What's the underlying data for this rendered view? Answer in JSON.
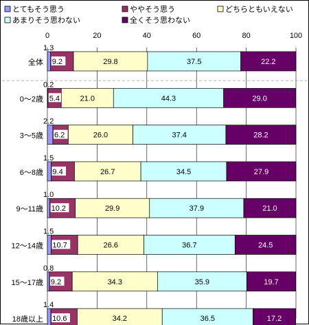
{
  "chart_data": {
    "type": "bar",
    "orientation": "horizontal",
    "stacked": true,
    "xlim": [
      0,
      100
    ],
    "xticks": [
      0,
      20,
      40,
      60,
      80,
      100
    ],
    "legend_placement": "top",
    "categories": [
      "全体",
      "0～2歳",
      "3～5歳",
      "6～8歳",
      "9～11歳",
      "12～14歳",
      "15～17歳",
      "18歳以上"
    ],
    "series": [
      {
        "name": "とてもそう思う",
        "color": "#9999ff",
        "values": [
          1.3,
          0.2,
          2.2,
          1.5,
          1.0,
          1.5,
          0.8,
          1.4
        ],
        "labels": [
          "1.3",
          "0.2",
          "2.2",
          "1.5",
          "1.0",
          "1.5",
          "0.8",
          "1.4"
        ]
      },
      {
        "name": "ややそう思う",
        "color": "#993366",
        "values": [
          9.2,
          5.4,
          6.2,
          9.4,
          10.2,
          10.7,
          9.2,
          10.6
        ],
        "labels": [
          "9.2",
          "5.4",
          "6.2",
          "9.4",
          "10.2",
          "10.7",
          "9.2",
          "10.6"
        ]
      },
      {
        "name": "どちらともいえない",
        "color": "#ffffcc",
        "values": [
          29.8,
          21.0,
          26.0,
          26.7,
          29.9,
          26.6,
          34.3,
          34.2
        ],
        "labels": [
          "29.8",
          "21.0",
          "26.0",
          "26.7",
          "29.9",
          "26.6",
          "34.3",
          "34.2"
        ]
      },
      {
        "name": "あまりそう思わない",
        "color": "#ccffff",
        "values": [
          37.5,
          44.3,
          37.4,
          34.5,
          37.9,
          36.7,
          35.9,
          36.5
        ],
        "labels": [
          "37.5",
          "44.3",
          "37.4",
          "34.5",
          "37.9",
          "36.7",
          "35.9",
          "36.5"
        ]
      },
      {
        "name": "全くそう思わない",
        "color": "#660066",
        "values": [
          22.2,
          29.0,
          28.2,
          27.9,
          21.0,
          24.5,
          19.7,
          17.2
        ],
        "labels": [
          "22.2",
          "29.0",
          "28.2",
          "27.9",
          "21.0",
          "24.5",
          "19.7",
          "17.2"
        ]
      }
    ]
  }
}
